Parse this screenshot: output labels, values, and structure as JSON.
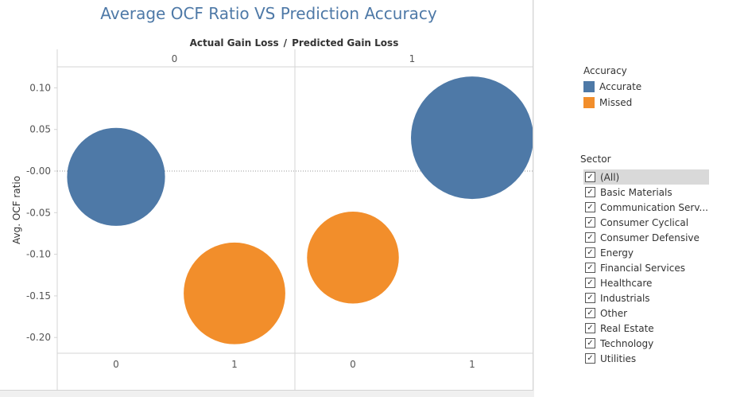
{
  "title": "Average OCF Ratio VS Prediction Accuracy",
  "chart_data": {
    "type": "scatter",
    "title": "Average OCF Ratio VS Prediction Accuracy",
    "column_header": "Actual Gain Loss",
    "column_separator": "/",
    "subcolumn_header": "Predicted Gain Loss",
    "ylabel": "Avg. OCF ratio",
    "ylim": [
      -0.22,
      0.125
    ],
    "yticks": [
      "0.10",
      "0.05",
      "-0.00",
      "-0.05",
      "-0.10",
      "-0.15",
      "-0.20"
    ],
    "ytick_values": [
      0.1,
      0.05,
      0.0,
      -0.05,
      -0.1,
      -0.15,
      -0.2
    ],
    "panes": [
      {
        "label": "0",
        "xticks": [
          "0",
          "1"
        ]
      },
      {
        "label": "1",
        "xticks": [
          "0",
          "1"
        ]
      }
    ],
    "points": [
      {
        "pane": 0,
        "predicted": 0,
        "y": -0.007,
        "accuracy": "Accurate",
        "relative_size": 0.8
      },
      {
        "pane": 0,
        "predicted": 1,
        "y": -0.147,
        "accuracy": "Missed",
        "relative_size": 0.83
      },
      {
        "pane": 1,
        "predicted": 0,
        "y": -0.104,
        "accuracy": "Missed",
        "relative_size": 0.75
      },
      {
        "pane": 1,
        "predicted": 1,
        "y": 0.04,
        "accuracy": "Accurate",
        "relative_size": 1.0
      }
    ],
    "zero_reference_line": true,
    "legend": {
      "title": "Accuracy",
      "position": "right",
      "items": [
        {
          "label": "Accurate",
          "color": "#4e79a7"
        },
        {
          "label": "Missed",
          "color": "#f28e2b"
        }
      ]
    }
  },
  "filter": {
    "title": "Sector",
    "items": [
      {
        "label": "(All)",
        "check": "✓"
      },
      {
        "label": "Basic Materials",
        "check": "✓"
      },
      {
        "label": "Communication Serv...",
        "check": "✓"
      },
      {
        "label": "Consumer Cyclical",
        "check": "✓"
      },
      {
        "label": "Consumer Defensive",
        "check": "✓"
      },
      {
        "label": "Energy",
        "check": "✓"
      },
      {
        "label": "Financial Services",
        "check": "✓"
      },
      {
        "label": "Healthcare",
        "check": "✓"
      },
      {
        "label": "Industrials",
        "check": "✓"
      },
      {
        "label": "Other",
        "check": "✓"
      },
      {
        "label": "Real Estate",
        "check": "✓"
      },
      {
        "label": "Technology",
        "check": "✓"
      },
      {
        "label": "Utilities",
        "check": "✓"
      }
    ]
  }
}
